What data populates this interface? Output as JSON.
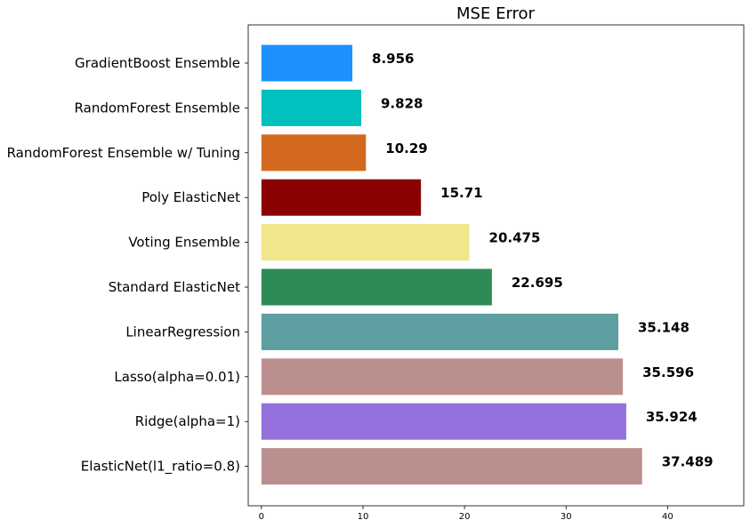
{
  "chart_data": {
    "type": "bar",
    "orientation": "horizontal",
    "title": "MSE Error",
    "xlabel": "",
    "ylabel": "",
    "xlim": [
      -1.3,
      47.5
    ],
    "xticks": [
      0,
      10,
      20,
      30,
      40
    ],
    "grid": false,
    "categories": [
      "GradientBoost Ensemble",
      "RandomForest Ensemble",
      "RandomForest Ensemble w/ Tuning",
      "Poly ElasticNet",
      "Voting Ensemble",
      "Standard ElasticNet",
      "LinearRegression",
      "Lasso(alpha=0.01)",
      "Ridge(alpha=1)",
      "ElasticNet(l1_ratio=0.8)"
    ],
    "values": [
      8.956,
      9.828,
      10.29,
      15.71,
      20.475,
      22.695,
      35.148,
      35.596,
      35.924,
      37.489
    ],
    "value_labels": [
      "8.956",
      "9.828",
      "10.29",
      "15.71",
      "20.475",
      "22.695",
      "35.148",
      "35.596",
      "35.924",
      "37.489"
    ],
    "colors": [
      "#1e90ff",
      "#00c0c0",
      "#d2691e",
      "#8b0000",
      "#f0e68c",
      "#2e8b57",
      "#5f9ea0",
      "#bc8f8f",
      "#9370db",
      "#bc8f8f"
    ]
  }
}
